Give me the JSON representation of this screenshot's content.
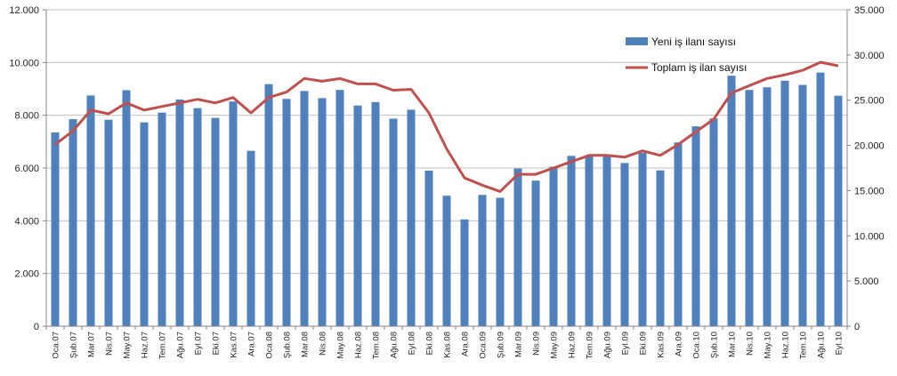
{
  "chart_data": {
    "type": "bar",
    "categories": [
      "Oca.07",
      "Şub.07",
      "Mar.07",
      "Nis.07",
      "May.07",
      "Haz.07",
      "Tem.07",
      "Ağu.07",
      "Eyl.07",
      "Eki.07",
      "Kas.07",
      "Ara.07",
      "Oca.08",
      "Şub.08",
      "Mar.08",
      "Nis.08",
      "May.08",
      "Haz.08",
      "Tem.08",
      "Ağu.08",
      "Eyl.08",
      "Eki.08",
      "Kas.08",
      "Ara.08",
      "Oca.09",
      "Şub.09",
      "Mar.09",
      "Nis.09",
      "May.09",
      "Haz.09",
      "Tem.09",
      "Ağu.09",
      "Eyl.09",
      "Eki.09",
      "Kas.09",
      "Ara.09",
      "Oca.10",
      "Şub.10",
      "Mar.10",
      "Nis.10",
      "May.10",
      "Haz.10",
      "Tem.10",
      "Ağu.10",
      "Eyl.10"
    ],
    "series": [
      {
        "name": "Yeni iş ilanı sayısı",
        "type": "bar",
        "axis": "left",
        "color": "#4F81BD",
        "values": [
          7350,
          7850,
          8750,
          7830,
          8950,
          7730,
          8100,
          8600,
          8270,
          7900,
          8520,
          6650,
          9180,
          8620,
          8920,
          8650,
          8960,
          8370,
          8500,
          7870,
          8210,
          5900,
          4950,
          4050,
          4980,
          4870,
          5980,
          5520,
          6050,
          6460,
          6490,
          6500,
          6190,
          6580,
          5910,
          6970,
          7580,
          7880,
          9500,
          8960,
          9060,
          9310,
          9150,
          9620,
          8740
        ]
      },
      {
        "name": "Toplam iş ilan sayısı",
        "type": "line",
        "axis": "right",
        "color": "#C0504D",
        "values": [
          20100,
          21600,
          23900,
          23500,
          24700,
          23900,
          24300,
          24700,
          25100,
          24700,
          25300,
          23600,
          25300,
          25900,
          27400,
          27100,
          27400,
          26800,
          26800,
          26100,
          26200,
          23600,
          19600,
          16400,
          15600,
          14900,
          16800,
          16800,
          17500,
          18200,
          18900,
          18900,
          18700,
          19400,
          18900,
          20100,
          21500,
          22900,
          25800,
          26600,
          27400,
          27800,
          28300,
          29200,
          28800
        ]
      }
    ],
    "yaxis_left": {
      "range": [
        0,
        12000
      ],
      "ticks": [
        "0",
        "2.000",
        "4.000",
        "6.000",
        "8.000",
        "10.000",
        "12.000"
      ]
    },
    "yaxis_right": {
      "range": [
        0,
        35000
      ],
      "ticks": [
        "0",
        "5.000",
        "10.000",
        "15.000",
        "20.000",
        "25.000",
        "30.000",
        "35.000"
      ]
    },
    "grid": "horizontal",
    "legend": {
      "placement": "top-right",
      "items": [
        {
          "label": "Yeni iş ilanı sayısı",
          "color": "#4F81BD",
          "shape": "bar"
        },
        {
          "label": "Toplam iş ilan sayısı",
          "color": "#C0504D",
          "shape": "line"
        }
      ]
    },
    "colors": {
      "bar": "#4F81BD",
      "line": "#C0504D",
      "grid": "#BFBFBF",
      "axis": "#868686"
    }
  }
}
